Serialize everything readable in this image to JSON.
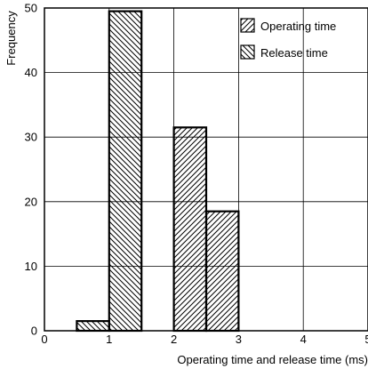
{
  "chart_data": {
    "type": "bar",
    "xlabel": "Operating time and release time (ms)",
    "ylabel": "Frequency",
    "xlim": [
      0,
      5
    ],
    "ylim": [
      0,
      50
    ],
    "x_ticks": [
      "0",
      "1",
      "2",
      "3",
      "4",
      "5"
    ],
    "y_ticks": [
      "0",
      "10",
      "20",
      "30",
      "40",
      "50"
    ],
    "grid": true,
    "legend_position": "top-right",
    "series": [
      {
        "name": "Operating time",
        "pattern": "hatch-forward",
        "bins": [
          {
            "x0": 2.0,
            "x1": 2.5,
            "value": 31.5
          },
          {
            "x0": 2.5,
            "x1": 3.0,
            "value": 18.5
          }
        ]
      },
      {
        "name": "Release time",
        "pattern": "hatch-backward",
        "bins": [
          {
            "x0": 0.5,
            "x1": 1.0,
            "value": 1.5
          },
          {
            "x0": 1.0,
            "x1": 1.5,
            "value": 49.5
          }
        ]
      }
    ],
    "colors": {
      "stroke": "#000000",
      "grid": "#000000",
      "background": "#ffffff"
    }
  }
}
